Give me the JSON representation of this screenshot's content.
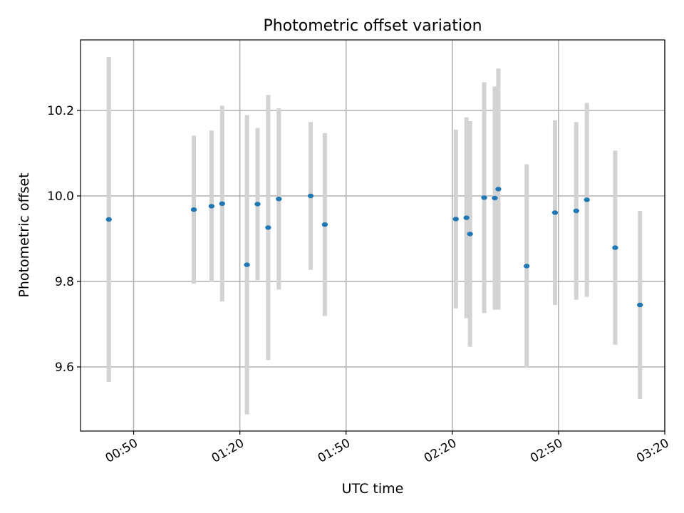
{
  "chart_data": {
    "type": "scatter",
    "title": "Photometric offset variation",
    "xlabel": "UTC time",
    "ylabel": "Photometric offset",
    "x_ticks": [
      "00:50",
      "01:20",
      "01:50",
      "02:20",
      "02:50",
      "03:20"
    ],
    "y_ticks": [
      "9.6",
      "9.8",
      "10.0",
      "10.2"
    ],
    "xlim": [
      "00:35",
      "03:20"
    ],
    "ylim": [
      9.45,
      10.365
    ],
    "grid": true,
    "errorbar_color": "#d3d3d3",
    "marker_color": "#1f77b4",
    "points": [
      {
        "t": "00:43",
        "y": 9.945,
        "err": 0.38
      },
      {
        "t": "01:07",
        "y": 9.968,
        "err": 0.173
      },
      {
        "t": "01:12",
        "y": 9.976,
        "err": 0.177
      },
      {
        "t": "01:15",
        "y": 9.982,
        "err": 0.229
      },
      {
        "t": "01:22",
        "y": 9.839,
        "err": 0.35
      },
      {
        "t": "01:25",
        "y": 9.981,
        "err": 0.178
      },
      {
        "t": "01:28",
        "y": 9.926,
        "err": 0.31
      },
      {
        "t": "01:31",
        "y": 9.993,
        "err": 0.212
      },
      {
        "t": "01:40",
        "y": 10.0,
        "err": 0.173
      },
      {
        "t": "01:44",
        "y": 9.933,
        "err": 0.214
      },
      {
        "t": "02:21",
        "y": 9.946,
        "err": 0.209
      },
      {
        "t": "02:24",
        "y": 9.949,
        "err": 0.235
      },
      {
        "t": "02:25",
        "y": 9.911,
        "err": 0.264
      },
      {
        "t": "02:29",
        "y": 9.996,
        "err": 0.27
      },
      {
        "t": "02:32",
        "y": 9.995,
        "err": 0.261
      },
      {
        "t": "02:33",
        "y": 10.016,
        "err": 0.282
      },
      {
        "t": "02:41",
        "y": 9.836,
        "err": 0.238
      },
      {
        "t": "02:49",
        "y": 9.961,
        "err": 0.216
      },
      {
        "t": "02:55",
        "y": 9.965,
        "err": 0.208
      },
      {
        "t": "02:58",
        "y": 9.991,
        "err": 0.227
      },
      {
        "t": "03:06",
        "y": 9.879,
        "err": 0.227
      },
      {
        "t": "03:13",
        "y": 9.745,
        "err": 0.22
      }
    ]
  }
}
